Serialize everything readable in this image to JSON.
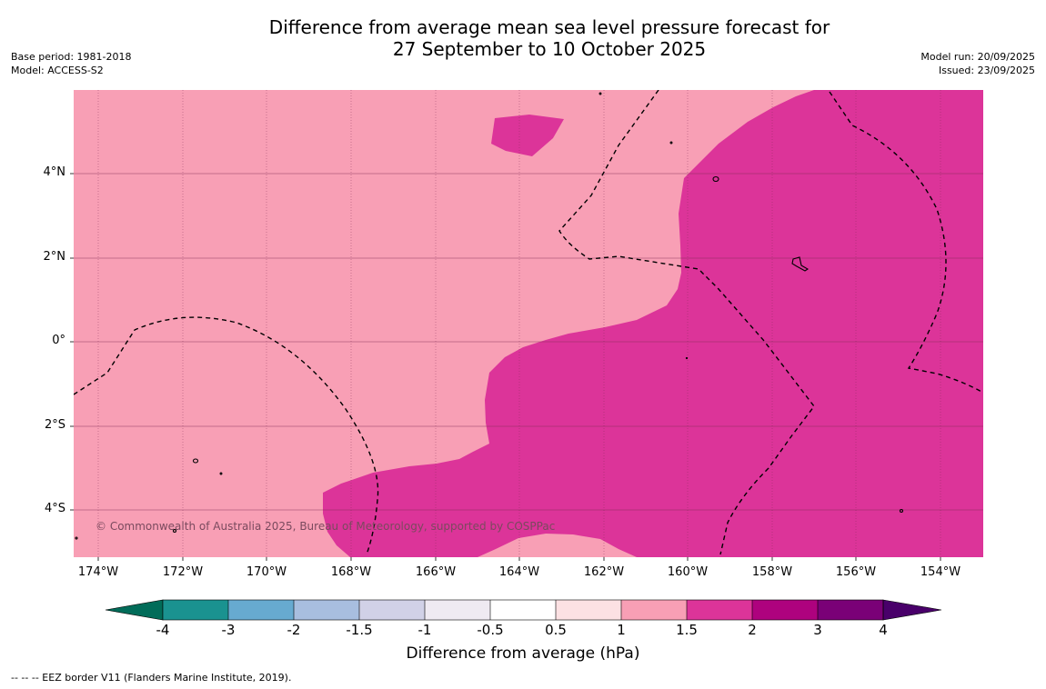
{
  "title": {
    "line1": "Difference from average mean sea level pressure forecast for",
    "line2": "27 September to 10 October 2025"
  },
  "meta_left": {
    "base_period": "Base period: 1981-2018",
    "model": "Model: ACCESS-S2"
  },
  "meta_right": {
    "model_run": "Model run: 20/09/2025",
    "issued": "Issued: 23/09/2025"
  },
  "map": {
    "latitude_labels": [
      "4°N",
      "2°N",
      "0°",
      "2°S",
      "4°S"
    ],
    "longitude_labels": [
      "174°W",
      "172°W",
      "170°W",
      "168°W",
      "166°W",
      "164°W",
      "162°W",
      "160°W",
      "158°W",
      "156°W",
      "154°W"
    ],
    "copyright": "© Commonwealth of Australia 2025, Bureau of Meteorology, supported by COSPPac",
    "colors": {
      "zone_1_to_1_5": "#f89fb5",
      "zone_1_5_to_2": "#dc3499",
      "gridline": "#7a2a50",
      "eez_border": "#000000"
    }
  },
  "colorbar": {
    "tick_labels": [
      "-4",
      "-3",
      "-2",
      "-1.5",
      "-1",
      "-0.5",
      "0.5",
      "1",
      "1.5",
      "2",
      "3",
      "4"
    ],
    "colors": [
      "#1a9290",
      "#67aad0",
      "#a8bedf",
      "#d1d1e7",
      "#efeaf2",
      "#ffffff",
      "#fce1e3",
      "#f89fb5",
      "#dc3499",
      "#ae027e",
      "#7a0177"
    ],
    "under_color": "#016c59",
    "over_color": "#49006a",
    "title": "Difference from average (hPa)"
  },
  "footnote": "--  --  -- EEZ border V11 (Flanders Marine Institute, 2019)."
}
